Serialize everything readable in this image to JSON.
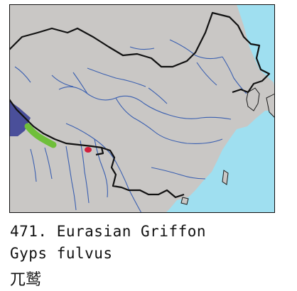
{
  "caption": {
    "plate_number": "471.",
    "common_name": "Eurasian Griffon",
    "scientific_name": "Gyps fulvus",
    "chinese_name": "兀鹫"
  },
  "map": {
    "colors": {
      "land": "#c9c7c5",
      "sea": "#9fdff0",
      "border": "#111111",
      "rivers": "#3a5fb0",
      "range_resident": "#6fbf3a",
      "range_winter": "#4a4f9a",
      "range_vagrant": "#d21f3c"
    },
    "range_categories": [
      "range_resident",
      "range_winter",
      "range_vagrant"
    ]
  }
}
